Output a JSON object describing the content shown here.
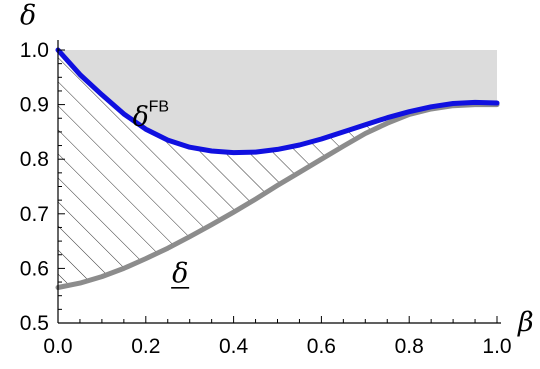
{
  "chart_data": {
    "type": "area",
    "title": "",
    "xlabel": "β",
    "ylabel": "δ",
    "xlim": [
      0,
      1
    ],
    "ylim": [
      0.5,
      1
    ],
    "x_ticks": [
      {
        "value": 0.0,
        "label": "0.0"
      },
      {
        "value": 0.2,
        "label": "0.2"
      },
      {
        "value": 0.4,
        "label": "0.4"
      },
      {
        "value": 0.6,
        "label": "0.6"
      },
      {
        "value": 0.8,
        "label": "0.8"
      },
      {
        "value": 1.0,
        "label": "1.0"
      }
    ],
    "y_ticks": [
      {
        "value": 0.5,
        "label": "0.5"
      },
      {
        "value": 0.6,
        "label": "0.6"
      },
      {
        "value": 0.7,
        "label": "0.7"
      },
      {
        "value": 0.8,
        "label": "0.8"
      },
      {
        "value": 0.9,
        "label": "0.9"
      },
      {
        "value": 1.0,
        "label": "1.0"
      }
    ],
    "grid": false,
    "series": [
      {
        "name": "δ^FB",
        "color": "#1010e0",
        "x": [
          0,
          0.05,
          0.1,
          0.15,
          0.2,
          0.25,
          0.3,
          0.35,
          0.4,
          0.45,
          0.5,
          0.55,
          0.6,
          0.65,
          0.7,
          0.75,
          0.8,
          0.85,
          0.9,
          0.95,
          1.0
        ],
        "y": [
          1.0,
          0.955,
          0.918,
          0.883,
          0.855,
          0.835,
          0.822,
          0.815,
          0.812,
          0.813,
          0.818,
          0.826,
          0.837,
          0.85,
          0.863,
          0.876,
          0.887,
          0.896,
          0.902,
          0.904,
          0.903
        ]
      },
      {
        "name": "δ",
        "color": "#8c8c8c",
        "x": [
          0,
          0.05,
          0.1,
          0.15,
          0.2,
          0.25,
          0.3,
          0.35,
          0.4,
          0.45,
          0.5,
          0.55,
          0.6,
          0.65,
          0.7,
          0.75,
          0.8,
          0.85,
          0.9,
          0.95,
          1.0
        ],
        "y": [
          0.565,
          0.573,
          0.585,
          0.6,
          0.618,
          0.637,
          0.658,
          0.68,
          0.703,
          0.727,
          0.752,
          0.776,
          0.8,
          0.824,
          0.847,
          0.866,
          0.882,
          0.892,
          0.898,
          0.9,
          0.9
        ]
      }
    ],
    "regions": [
      {
        "between": [
          "δ^FB",
          "top"
        ],
        "fill": "#dcdcdc"
      },
      {
        "between": [
          "δ",
          "δ^FB"
        ],
        "fill": "hatched"
      }
    ],
    "annotations": [
      {
        "text": "δ",
        "superscript": "FB",
        "x": 0.17,
        "y": 0.88
      },
      {
        "text": "δ",
        "underline": true,
        "x": 0.26,
        "y": 0.59
      }
    ]
  }
}
